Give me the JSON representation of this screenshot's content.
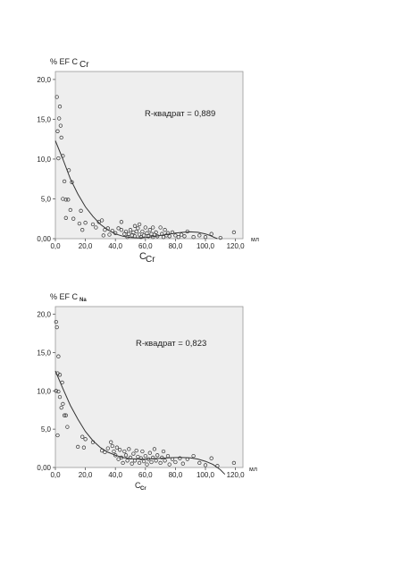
{
  "chart_data": [
    {
      "type": "scatter",
      "ylabel_prefix": "% EF C",
      "ylabel_sub": "Cr",
      "xlabel_main": "C",
      "xlabel_sub": "Cr",
      "x_unit": "мл",
      "annotation": "R-квадрат = 0,889",
      "xlim": [
        0,
        125
      ],
      "ylim": [
        0,
        21
      ],
      "xticks": [
        "0,0",
        "20,0",
        "40,0",
        "60,0",
        "80,0",
        "100,0",
        "120,0"
      ],
      "xtick_values": [
        0,
        20,
        40,
        60,
        80,
        100,
        120
      ],
      "yticks": [
        "0,00",
        "5,0",
        "10,0",
        "15,0",
        "20,0"
      ],
      "ytick_values": [
        0,
        5,
        10,
        15,
        20
      ],
      "points": [
        [
          1,
          17.8
        ],
        [
          3,
          16.6
        ],
        [
          2.5,
          15.1
        ],
        [
          3.5,
          14.2
        ],
        [
          1.5,
          13.5
        ],
        [
          4,
          12.7
        ],
        [
          2,
          10.1
        ],
        [
          5,
          10.4
        ],
        [
          9,
          8.6
        ],
        [
          6,
          7.2
        ],
        [
          11,
          7.1
        ],
        [
          5,
          5
        ],
        [
          7,
          4.9
        ],
        [
          8.5,
          4.9
        ],
        [
          10,
          3.6
        ],
        [
          17,
          3.5
        ],
        [
          7,
          2.6
        ],
        [
          12,
          2.5
        ],
        [
          16,
          1.9
        ],
        [
          18,
          1.1
        ],
        [
          20,
          2
        ],
        [
          25,
          1.8
        ],
        [
          29,
          2.1
        ],
        [
          31,
          2.3
        ],
        [
          27,
          1.4
        ],
        [
          33,
          1.1
        ],
        [
          35,
          1.3
        ],
        [
          36,
          0.5
        ],
        [
          32,
          0.4
        ],
        [
          38,
          1
        ],
        [
          40,
          0.7
        ],
        [
          42,
          1.3
        ],
        [
          44,
          1.1
        ],
        [
          44,
          2.1
        ],
        [
          46,
          0.6
        ],
        [
          47,
          0.9
        ],
        [
          48,
          0.2
        ],
        [
          49,
          0.6
        ],
        [
          50,
          1.1
        ],
        [
          51,
          0.4
        ],
        [
          52,
          0.8
        ],
        [
          53,
          0.3
        ],
        [
          53,
          1.6
        ],
        [
          54,
          0.9
        ],
        [
          55,
          1.3
        ],
        [
          56,
          0.5
        ],
        [
          56,
          1.8
        ],
        [
          57,
          0.2
        ],
        [
          58,
          0.9
        ],
        [
          59,
          0.4
        ],
        [
          60,
          1.4
        ],
        [
          61,
          0.7
        ],
        [
          62,
          0.3
        ],
        [
          63,
          1.1
        ],
        [
          64,
          0.6
        ],
        [
          65,
          0.2
        ],
        [
          65,
          1.4
        ],
        [
          66,
          0.5
        ],
        [
          67,
          0.8
        ],
        [
          68,
          0.3
        ],
        [
          70,
          1.4
        ],
        [
          71,
          0.6
        ],
        [
          72,
          0.2
        ],
        [
          73,
          1.1
        ],
        [
          74,
          0.4
        ],
        [
          75,
          0.7
        ],
        [
          76,
          0.3
        ],
        [
          78,
          0.8
        ],
        [
          80,
          0.4
        ],
        [
          82,
          0.2
        ],
        [
          84,
          0.5
        ],
        [
          86,
          0.3
        ],
        [
          88,
          0.9
        ],
        [
          92,
          0.2
        ],
        [
          96,
          0.4
        ],
        [
          100,
          0.2
        ],
        [
          104,
          0.6
        ],
        [
          110,
          0.1
        ],
        [
          119,
          0.8
        ]
      ],
      "fit": [
        [
          0,
          12.3
        ],
        [
          5,
          10
        ],
        [
          10,
          7.5
        ],
        [
          15,
          5.6
        ],
        [
          20,
          4
        ],
        [
          25,
          2.8
        ],
        [
          30,
          1.8
        ],
        [
          35,
          1.1
        ],
        [
          40,
          0.6
        ],
        [
          45,
          0.3
        ],
        [
          50,
          0.15
        ],
        [
          55,
          0.1
        ],
        [
          60,
          0.15
        ],
        [
          65,
          0.25
        ],
        [
          70,
          0.4
        ],
        [
          75,
          0.55
        ],
        [
          80,
          0.7
        ],
        [
          85,
          0.8
        ],
        [
          90,
          0.85
        ],
        [
          95,
          0.8
        ],
        [
          100,
          0.6
        ],
        [
          103,
          0.4
        ],
        [
          106,
          0.15
        ],
        [
          108,
          0
        ]
      ]
    },
    {
      "type": "scatter",
      "ylabel_prefix": "% EF C",
      "ylabel_sub": "Na",
      "xlabel_main": "C",
      "xlabel_sub": "Cr",
      "x_unit": "мл",
      "annotation": "R-квадрат = 0,823",
      "xlim": [
        0,
        125
      ],
      "ylim": [
        0,
        21
      ],
      "xticks": [
        "0,0",
        "20,0",
        "40,0",
        "60,0",
        "80,0",
        "100,0",
        "120,0"
      ],
      "xtick_values": [
        0,
        20,
        40,
        60,
        80,
        100,
        120
      ],
      "yticks": [
        "0,00",
        "5,0",
        "10,0",
        "15,0",
        "20,0"
      ],
      "ytick_values": [
        0,
        5,
        10,
        15,
        20
      ],
      "points": [
        [
          0.5,
          19
        ],
        [
          1,
          18.3
        ],
        [
          2,
          14.5
        ],
        [
          1.5,
          12.3
        ],
        [
          3,
          12.1
        ],
        [
          4.5,
          11.1
        ],
        [
          0.5,
          10
        ],
        [
          2,
          9.9
        ],
        [
          3,
          9.2
        ],
        [
          5,
          8.3
        ],
        [
          4,
          7.8
        ],
        [
          6,
          6.8
        ],
        [
          7,
          6.8
        ],
        [
          8,
          5.3
        ],
        [
          1.5,
          4.2
        ],
        [
          18,
          4
        ],
        [
          20,
          3.7
        ],
        [
          25,
          3.3
        ],
        [
          19,
          2.6
        ],
        [
          15,
          2.7
        ],
        [
          31,
          2.2
        ],
        [
          33,
          2
        ],
        [
          35,
          2.5
        ],
        [
          37,
          3.3
        ],
        [
          38,
          2.8
        ],
        [
          39,
          2.1
        ],
        [
          40,
          1.6
        ],
        [
          41,
          2.6
        ],
        [
          42,
          1.1
        ],
        [
          43,
          2.3
        ],
        [
          44,
          1.3
        ],
        [
          45,
          0.6
        ],
        [
          46,
          2.1
        ],
        [
          47,
          1.6
        ],
        [
          48,
          0.9
        ],
        [
          49,
          2.4
        ],
        [
          50,
          1.3
        ],
        [
          51,
          0.5
        ],
        [
          52,
          1.8
        ],
        [
          53,
          0.9
        ],
        [
          54,
          2.2
        ],
        [
          55,
          1.4
        ],
        [
          56,
          0.6
        ],
        [
          57,
          1.2
        ],
        [
          58,
          2.1
        ],
        [
          59,
          0.8
        ],
        [
          60,
          1.5
        ],
        [
          61,
          0.4
        ],
        [
          62,
          1.1
        ],
        [
          63,
          1.9
        ],
        [
          64,
          0.7
        ],
        [
          65,
          1.3
        ],
        [
          66,
          2.4
        ],
        [
          67,
          0.9
        ],
        [
          68,
          1.6
        ],
        [
          70,
          0.6
        ],
        [
          71,
          1.3
        ],
        [
          72,
          2.1
        ],
        [
          73,
          0.9
        ],
        [
          75,
          1.5
        ],
        [
          76,
          0.4
        ],
        [
          78,
          1.1
        ],
        [
          80,
          0.7
        ],
        [
          83,
          1.2
        ],
        [
          85,
          0.5
        ],
        [
          88,
          1.1
        ],
        [
          92,
          1.5
        ],
        [
          96,
          0.6
        ],
        [
          100,
          0.3
        ],
        [
          104,
          1.2
        ],
        [
          108,
          0.2
        ],
        [
          119,
          0.6
        ]
      ],
      "fit": [
        [
          0,
          12.6
        ],
        [
          5,
          10.3
        ],
        [
          10,
          8.1
        ],
        [
          15,
          6.3
        ],
        [
          20,
          4.7
        ],
        [
          25,
          3.5
        ],
        [
          30,
          2.6
        ],
        [
          35,
          2
        ],
        [
          40,
          1.6
        ],
        [
          45,
          1.3
        ],
        [
          50,
          1.15
        ],
        [
          55,
          1.1
        ],
        [
          60,
          1.1
        ],
        [
          65,
          1.15
        ],
        [
          70,
          1.2
        ],
        [
          75,
          1.25
        ],
        [
          80,
          1.3
        ],
        [
          85,
          1.3
        ],
        [
          90,
          1.25
        ],
        [
          95,
          1.1
        ],
        [
          100,
          0.8
        ],
        [
          105,
          0.4
        ],
        [
          110,
          -0.3
        ],
        [
          113,
          -0.9
        ]
      ]
    }
  ]
}
